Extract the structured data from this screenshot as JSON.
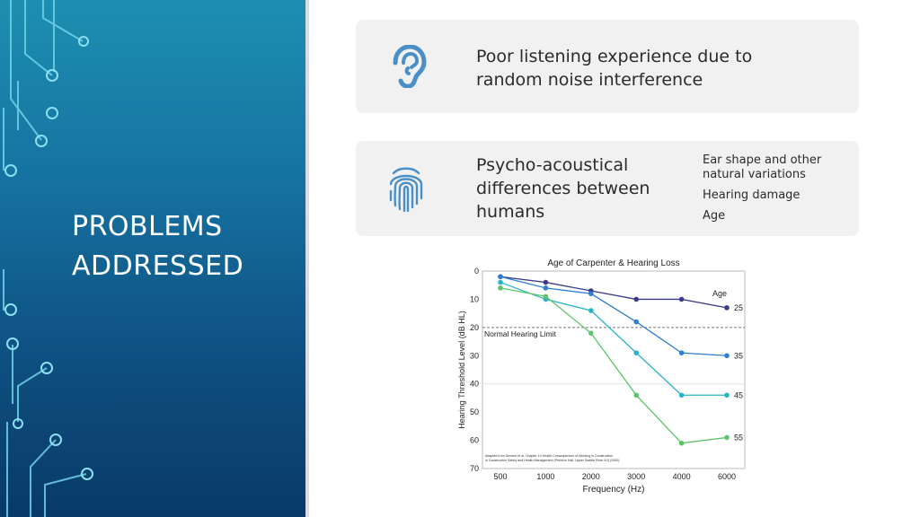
{
  "slide": {
    "title": "PROBLEMS\nADDRESSED",
    "colors": {
      "sidebar_top": "#1d8fb0",
      "sidebar_bottom": "#093a68",
      "icon": "#4a90c8",
      "card_bg": "#f1f1f1"
    }
  },
  "cards": [
    {
      "icon": "ear-icon",
      "text": "Poor listening experience due to\nrandom noise interference"
    },
    {
      "icon": "fingerprint-icon",
      "text": "Psycho-acoustical\ndifferences between\nhumans",
      "subitems": [
        "Ear shape and other\nnatural variations",
        "Hearing damage",
        "Age"
      ]
    }
  ],
  "chart_data": {
    "type": "line",
    "title": "Age of Carpenter & Hearing Loss",
    "xlabel": "Frequency (Hz)",
    "ylabel": "Hearing Threshold Level (dB HL)",
    "categories": [
      "500",
      "1000",
      "2000",
      "3000",
      "4000",
      "6000"
    ],
    "ylim": [
      70,
      0
    ],
    "y_ticks": [
      "0",
      "10",
      "20",
      "30",
      "40",
      "50",
      "60",
      "70"
    ],
    "y_inverted": true,
    "legend_title": "Age",
    "reference_line": {
      "value": 20,
      "label": "Normal Hearing Limit"
    },
    "series": [
      {
        "name": "25",
        "color": "#3b3a8a",
        "values": [
          2,
          4,
          7,
          10,
          10,
          13
        ]
      },
      {
        "name": "35",
        "color": "#2f7fd0",
        "values": [
          2,
          6,
          8,
          18,
          29,
          30
        ]
      },
      {
        "name": "45",
        "color": "#27b3c8",
        "values": [
          4,
          10,
          14,
          29,
          44,
          44
        ]
      },
      {
        "name": "55",
        "color": "#5ec46a",
        "values": [
          6,
          9,
          22,
          44,
          61,
          59
        ]
      }
    ],
    "footnote": "Adapted from Dement et al. Chapter 10 Health Consequences of Working in Construction\nin Construction Safety and Health Management (Prentice Hall, Upper Saddle River NJ) (2000)"
  }
}
